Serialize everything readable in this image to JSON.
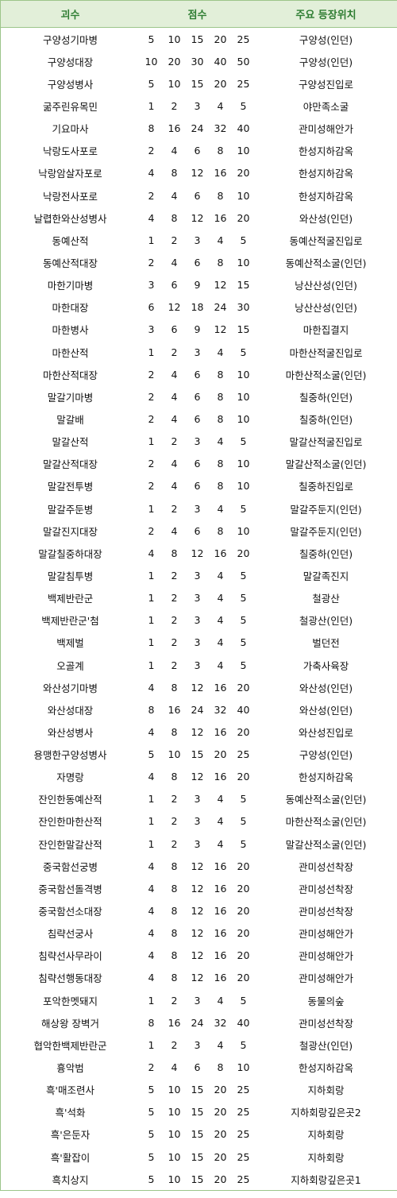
{
  "header": {
    "monster": "괴수",
    "score": "점수",
    "location": "주요 등장위치"
  },
  "rows": [
    {
      "name": "구양성기마병",
      "s": [
        "5",
        "10",
        "15",
        "20",
        "25"
      ],
      "loc": "구양성(인던)"
    },
    {
      "name": "구양성대장",
      "s": [
        "10",
        "20",
        "30",
        "40",
        "50"
      ],
      "loc": "구양성(인던)"
    },
    {
      "name": "구양성병사",
      "s": [
        "5",
        "10",
        "15",
        "20",
        "25"
      ],
      "loc": "구양성진입로"
    },
    {
      "name": "굶주린유목민",
      "s": [
        "1",
        "2",
        "3",
        "4",
        "5"
      ],
      "loc": "야만족소굴"
    },
    {
      "name": "기요마사",
      "s": [
        "8",
        "16",
        "24",
        "32",
        "40"
      ],
      "loc": "관미성해안가"
    },
    {
      "name": "낙랑도사포로",
      "s": [
        "2",
        "4",
        "6",
        "8",
        "10"
      ],
      "loc": "한성지하감옥"
    },
    {
      "name": "낙랑암살자포로",
      "s": [
        "4",
        "8",
        "12",
        "16",
        "20"
      ],
      "loc": "한성지하감옥"
    },
    {
      "name": "낙랑전사포로",
      "s": [
        "2",
        "4",
        "6",
        "8",
        "10"
      ],
      "loc": "한성지하감옥"
    },
    {
      "name": "날렵한와산성병사",
      "s": [
        "4",
        "8",
        "12",
        "16",
        "20"
      ],
      "loc": "와산성(인던)"
    },
    {
      "name": "동예산적",
      "s": [
        "1",
        "2",
        "3",
        "4",
        "5"
      ],
      "loc": "동예산적굴진입로"
    },
    {
      "name": "동예산적대장",
      "s": [
        "2",
        "4",
        "6",
        "8",
        "10"
      ],
      "loc": "동예산적소굴(인던)"
    },
    {
      "name": "마한기마병",
      "s": [
        "3",
        "6",
        "9",
        "12",
        "15"
      ],
      "loc": "낭산산성(인던)"
    },
    {
      "name": "마한대장",
      "s": [
        "6",
        "12",
        "18",
        "24",
        "30"
      ],
      "loc": "낭산산성(인던)"
    },
    {
      "name": "마한병사",
      "s": [
        "3",
        "6",
        "9",
        "12",
        "15"
      ],
      "loc": "마한집결지"
    },
    {
      "name": "마한산적",
      "s": [
        "1",
        "2",
        "3",
        "4",
        "5"
      ],
      "loc": "마한산적굴진입로"
    },
    {
      "name": "마한산적대장",
      "s": [
        "2",
        "4",
        "6",
        "8",
        "10"
      ],
      "loc": "마한산적소굴(인던)"
    },
    {
      "name": "말갈기마병",
      "s": [
        "2",
        "4",
        "6",
        "8",
        "10"
      ],
      "loc": "칠중하(인던)"
    },
    {
      "name": "말갈배",
      "s": [
        "2",
        "4",
        "6",
        "8",
        "10"
      ],
      "loc": "칠중하(인던)"
    },
    {
      "name": "말갈산적",
      "s": [
        "1",
        "2",
        "3",
        "4",
        "5"
      ],
      "loc": "말갈산적굴진입로"
    },
    {
      "name": "말갈산적대장",
      "s": [
        "2",
        "4",
        "6",
        "8",
        "10"
      ],
      "loc": "말갈산적소굴(인던)"
    },
    {
      "name": "말갈전투병",
      "s": [
        "2",
        "4",
        "6",
        "8",
        "10"
      ],
      "loc": "칠중하진입로"
    },
    {
      "name": "말갈주둔병",
      "s": [
        "1",
        "2",
        "3",
        "4",
        "5"
      ],
      "loc": "말갈주둔지(인던)"
    },
    {
      "name": "말갈진지대장",
      "s": [
        "2",
        "4",
        "6",
        "8",
        "10"
      ],
      "loc": "말갈주둔지(인던)"
    },
    {
      "name": "말갈칠중하대장",
      "s": [
        "4",
        "8",
        "12",
        "16",
        "20"
      ],
      "loc": "칠중하(인던)"
    },
    {
      "name": "말갈침투병",
      "s": [
        "1",
        "2",
        "3",
        "4",
        "5"
      ],
      "loc": "말갈족진지"
    },
    {
      "name": "백제반란군",
      "s": [
        "1",
        "2",
        "3",
        "4",
        "5"
      ],
      "loc": "철광산"
    },
    {
      "name": "백제반란군'첨",
      "s": [
        "1",
        "2",
        "3",
        "4",
        "5"
      ],
      "loc": "철광산(인던)"
    },
    {
      "name": "백제벌",
      "s": [
        "1",
        "2",
        "3",
        "4",
        "5"
      ],
      "loc": "벌던전"
    },
    {
      "name": "오골계",
      "s": [
        "1",
        "2",
        "3",
        "4",
        "5"
      ],
      "loc": "가축사육장"
    },
    {
      "name": "와산성기마병",
      "s": [
        "4",
        "8",
        "12",
        "16",
        "20"
      ],
      "loc": "와산성(인던)"
    },
    {
      "name": "와산성대장",
      "s": [
        "8",
        "16",
        "24",
        "32",
        "40"
      ],
      "loc": "와산성(인던)"
    },
    {
      "name": "와산성병사",
      "s": [
        "4",
        "8",
        "12",
        "16",
        "20"
      ],
      "loc": "와산성진입로"
    },
    {
      "name": "용맹한구양성병사",
      "s": [
        "5",
        "10",
        "15",
        "20",
        "25"
      ],
      "loc": "구양성(인던)"
    },
    {
      "name": "자명랑",
      "s": [
        "4",
        "8",
        "12",
        "16",
        "20"
      ],
      "loc": "한성지하감옥"
    },
    {
      "name": "잔인한동예산적",
      "s": [
        "1",
        "2",
        "3",
        "4",
        "5"
      ],
      "loc": "동예산적소굴(인던)"
    },
    {
      "name": "잔인한마한산적",
      "s": [
        "1",
        "2",
        "3",
        "4",
        "5"
      ],
      "loc": "마한산적소굴(인던)"
    },
    {
      "name": "잔인한말갈산적",
      "s": [
        "1",
        "2",
        "3",
        "4",
        "5"
      ],
      "loc": "말갈산적소굴(인던)"
    },
    {
      "name": "중국함선궁병",
      "s": [
        "4",
        "8",
        "12",
        "16",
        "20"
      ],
      "loc": "관미성선착장"
    },
    {
      "name": "중국함선돌격병",
      "s": [
        "4",
        "8",
        "12",
        "16",
        "20"
      ],
      "loc": "관미성선착장"
    },
    {
      "name": "중국함선소대장",
      "s": [
        "4",
        "8",
        "12",
        "16",
        "20"
      ],
      "loc": "관미성선착장"
    },
    {
      "name": "침략선궁사",
      "s": [
        "4",
        "8",
        "12",
        "16",
        "20"
      ],
      "loc": "관미성해안가"
    },
    {
      "name": "침략선사무라이",
      "s": [
        "4",
        "8",
        "12",
        "16",
        "20"
      ],
      "loc": "관미성해안가"
    },
    {
      "name": "침략선행동대장",
      "s": [
        "4",
        "8",
        "12",
        "16",
        "20"
      ],
      "loc": "관미성해안가"
    },
    {
      "name": "포악한멧돼지",
      "s": [
        "1",
        "2",
        "3",
        "4",
        "5"
      ],
      "loc": "동물의숲"
    },
    {
      "name": "해상왕 장벽거",
      "s": [
        "8",
        "16",
        "24",
        "32",
        "40"
      ],
      "loc": "관미성선착장"
    },
    {
      "name": "협악한백제반란군",
      "s": [
        "1",
        "2",
        "3",
        "4",
        "5"
      ],
      "loc": "철광산(인던)"
    },
    {
      "name": "흉악범",
      "s": [
        "2",
        "4",
        "6",
        "8",
        "10"
      ],
      "loc": "한성지하감옥"
    },
    {
      "name": "흑'매조련사",
      "s": [
        "5",
        "10",
        "15",
        "20",
        "25"
      ],
      "loc": "지하회랑"
    },
    {
      "name": "흑'석화",
      "s": [
        "5",
        "10",
        "15",
        "20",
        "25"
      ],
      "loc": "지하회랑깊은곳2"
    },
    {
      "name": "흑'은둔자",
      "s": [
        "5",
        "10",
        "15",
        "20",
        "25"
      ],
      "loc": "지하회랑"
    },
    {
      "name": "흑'활잡이",
      "s": [
        "5",
        "10",
        "15",
        "20",
        "25"
      ],
      "loc": "지하회랑"
    },
    {
      "name": "흑치상지",
      "s": [
        "5",
        "10",
        "15",
        "20",
        "25"
      ],
      "loc": "지하회랑깊은곳1"
    }
  ]
}
